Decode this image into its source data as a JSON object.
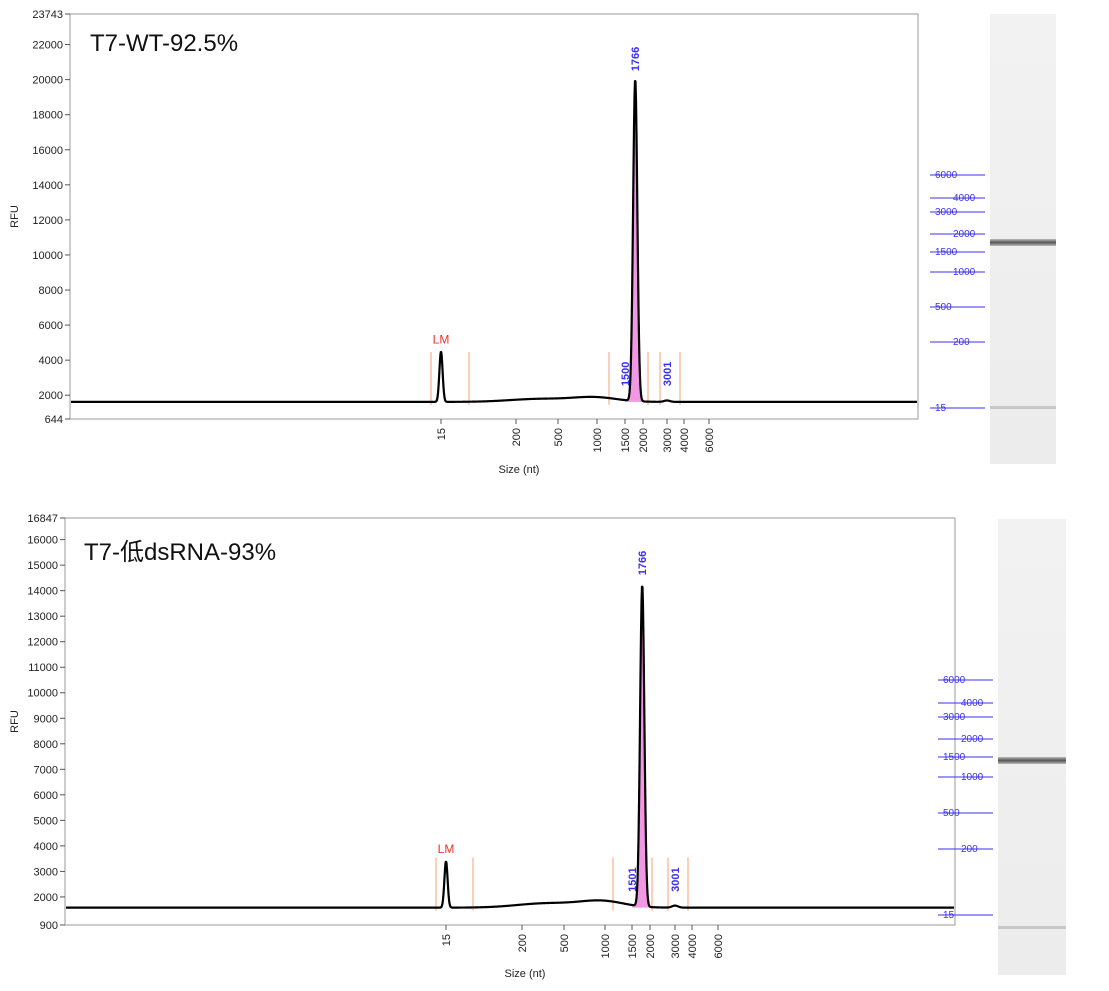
{
  "chart_data": [
    {
      "type": "line",
      "title": "T7-WT-92.5%",
      "xlabel": "Size (nt)",
      "ylabel": "RFU",
      "ylim": [
        644,
        23743
      ],
      "y_ticks": [
        "644",
        "2000",
        "4000",
        "6000",
        "8000",
        "10000",
        "12000",
        "14000",
        "16000",
        "18000",
        "20000",
        "22000",
        "23743"
      ],
      "x_ticks": [
        "15",
        "200",
        "500",
        "1000",
        "1500",
        "2000",
        "3000",
        "4000",
        "6000"
      ],
      "lower_marker": {
        "label": "LM",
        "size_nt": 15,
        "rfu": 4500
      },
      "peaks": [
        {
          "label": "1766",
          "size_nt": 1766,
          "rfu": 20000
        },
        {
          "label": "1500",
          "size_nt": 1500,
          "rfu": 2100
        },
        {
          "label": "3001",
          "size_nt": 3001,
          "rfu": 1700
        }
      ],
      "ladder": [
        "6000",
        "4000",
        "3000",
        "2000",
        "1500",
        "1000",
        "500",
        "200",
        "15"
      ],
      "grid": false,
      "colors": {
        "trace": "#000000",
        "peak_fill": "#f08ce0",
        "window_lines": "#f4a07a",
        "labels": "#3b2ff0",
        "lm": "#e8342a"
      }
    },
    {
      "type": "line",
      "title": "T7-低dsRNA-93%",
      "xlabel": "Size (nt)",
      "ylabel": "RFU",
      "ylim": [
        900,
        16847
      ],
      "y_ticks": [
        "900",
        "2000",
        "3000",
        "4000",
        "5000",
        "6000",
        "7000",
        "8000",
        "9000",
        "10000",
        "11000",
        "12000",
        "13000",
        "14000",
        "15000",
        "16000",
        "16847"
      ],
      "x_ticks": [
        "15",
        "200",
        "500",
        "1000",
        "1500",
        "2000",
        "3000",
        "4000",
        "6000"
      ],
      "lower_marker": {
        "label": "LM",
        "size_nt": 15,
        "rfu": 3400
      },
      "peaks": [
        {
          "label": "1766",
          "size_nt": 1766,
          "rfu": 14200
        },
        {
          "label": "1501",
          "size_nt": 1501,
          "rfu": 1900
        },
        {
          "label": "3001",
          "size_nt": 3001,
          "rfu": 1650
        }
      ],
      "ladder": [
        "6000",
        "4000",
        "3000",
        "2000",
        "1500",
        "1000",
        "500",
        "200",
        "15"
      ],
      "grid": false,
      "colors": {
        "trace": "#000000",
        "peak_fill": "#f08ce0",
        "window_lines": "#f4a07a",
        "labels": "#3b2ff0",
        "lm": "#e8342a"
      }
    }
  ]
}
